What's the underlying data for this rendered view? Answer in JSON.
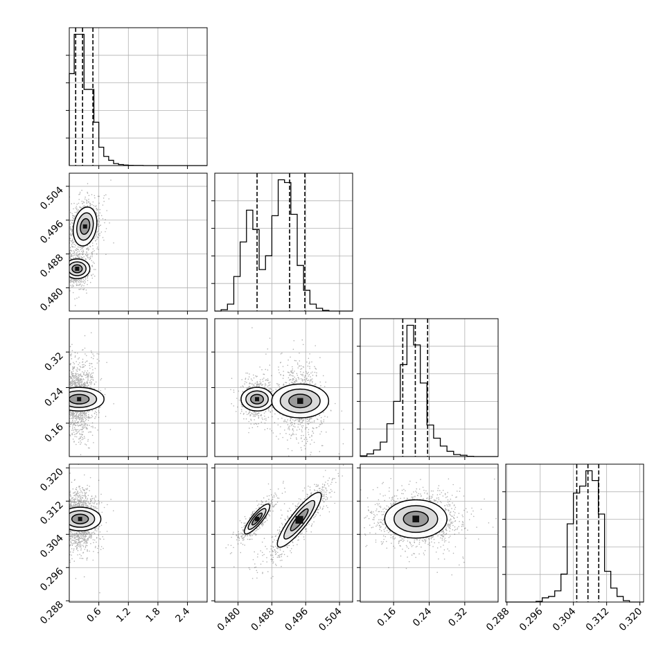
{
  "chart_data": {
    "type": "corner",
    "title": "",
    "grid": true,
    "parameters": [
      {
        "name": "",
        "range": [
          0.0,
          2.8
        ],
        "ticks": [
          0.6,
          1.2,
          1.8,
          2.4
        ],
        "tick_labels": [
          "0.6",
          "1.2",
          "1.8",
          "2.4"
        ],
        "quantiles": [
          0.13,
          0.27,
          0.48
        ],
        "histogram": {
          "bin_edges": [
            0.0,
            0.1,
            0.2,
            0.3,
            0.4,
            0.5,
            0.6,
            0.7,
            0.8,
            0.9,
            1.0,
            1.1,
            1.2,
            1.3,
            1.4,
            1.5,
            1.6,
            1.7,
            1.8,
            1.9,
            2.0,
            2.1,
            2.2,
            2.3,
            2.4,
            2.5,
            2.6,
            2.7,
            2.8
          ],
          "counts": [
            700,
            1000,
            1000,
            580,
            580,
            330,
            140,
            70,
            40,
            15,
            8,
            4,
            2,
            1,
            1,
            0,
            0,
            0,
            0,
            0,
            0,
            0,
            0,
            0,
            0,
            0,
            0,
            0
          ]
        }
      },
      {
        "name": "",
        "range": [
          0.4745,
          0.5071
        ],
        "ticks": [
          0.48,
          0.488,
          0.496,
          0.504
        ],
        "tick_labels": [
          "0.480",
          "0.488",
          "0.496",
          "0.504"
        ],
        "quantiles": [
          0.4845,
          0.4922,
          0.4958
        ],
        "histogram": {
          "bin_edges": [
            0.4745,
            0.476,
            0.4775,
            0.479,
            0.4805,
            0.482,
            0.4835,
            0.485,
            0.4865,
            0.488,
            0.4895,
            0.491,
            0.4925,
            0.494,
            0.4955,
            0.497,
            0.4985,
            0.5,
            0.5015,
            0.503,
            0.5045,
            0.506,
            0.5071
          ],
          "counts": [
            0,
            10,
            50,
            250,
            500,
            730,
            590,
            300,
            400,
            690,
            950,
            930,
            700,
            330,
            150,
            50,
            20,
            5,
            0,
            0,
            0,
            0
          ]
        }
      },
      {
        "name": "",
        "range": [
          0.085,
          0.395
        ],
        "ticks": [
          0.16,
          0.24,
          0.32
        ],
        "tick_labels": [
          "0.16",
          "0.24",
          "0.32"
        ],
        "quantiles": [
          0.1806,
          0.2088,
          0.2365
        ],
        "histogram": {
          "bin_edges": [
            0.085,
            0.1,
            0.115,
            0.13,
            0.145,
            0.16,
            0.175,
            0.19,
            0.205,
            0.22,
            0.235,
            0.25,
            0.265,
            0.28,
            0.295,
            0.31,
            0.325,
            0.34,
            0.355,
            0.37,
            0.385,
            0.395
          ],
          "counts": [
            5,
            20,
            50,
            110,
            250,
            420,
            700,
            1000,
            850,
            560,
            240,
            140,
            80,
            40,
            15,
            10,
            2,
            0,
            0,
            0,
            0
          ]
        }
      },
      {
        "name": "",
        "range": [
          0.2877,
          0.3209
        ],
        "ticks": [
          0.288,
          0.296,
          0.304,
          0.312,
          0.32
        ],
        "tick_labels": [
          "0.288",
          "0.296",
          "0.304",
          "0.312",
          "0.320"
        ],
        "quantiles": [
          0.3048,
          0.3075,
          0.3101
        ],
        "histogram": {
          "bin_edges": [
            0.2877,
            0.289,
            0.2905,
            0.292,
            0.2935,
            0.295,
            0.2965,
            0.298,
            0.2995,
            0.301,
            0.3025,
            0.304,
            0.3055,
            0.307,
            0.3085,
            0.31,
            0.3115,
            0.313,
            0.3145,
            0.316,
            0.3175,
            0.319,
            0.3209
          ],
          "counts": [
            0,
            0,
            0,
            0,
            0,
            5,
            30,
            40,
            80,
            200,
            560,
            780,
            830,
            940,
            870,
            630,
            220,
            100,
            40,
            10,
            0,
            0
          ]
        }
      }
    ],
    "pairs": [
      {
        "x_param": 0,
        "y_param": 1,
        "modes": [
          {
            "x": 0.32,
            "y": 0.4945,
            "sx": 0.12,
            "sy": 0.0023,
            "rho": 0.2,
            "weight": 0.55,
            "contours": 3
          },
          {
            "x": 0.16,
            "y": 0.4845,
            "sx": 0.1,
            "sy": 0.0015,
            "rho": 0.0,
            "weight": 0.45,
            "contours": 3
          }
        ]
      },
      {
        "x_param": 0,
        "y_param": 2,
        "modes": [
          {
            "x": 0.2,
            "y": 0.214,
            "sx": 0.12,
            "sy": 0.028,
            "rho": 0.0,
            "weight": 1.0,
            "contours": 3
          }
        ]
      },
      {
        "x_param": 0,
        "y_param": 3,
        "modes": [
          {
            "x": 0.22,
            "y": 0.3077,
            "sx": 0.12,
            "sy": 0.0025,
            "rho": 0.0,
            "weight": 1.0,
            "contours": 3
          }
        ]
      },
      {
        "x_param": 1,
        "y_param": 2,
        "modes": [
          {
            "x": 0.4845,
            "y": 0.214,
            "sx": 0.0014,
            "sy": 0.018,
            "rho": 0.0,
            "weight": 0.4,
            "contours": 3
          },
          {
            "x": 0.4947,
            "y": 0.21,
            "sx": 0.002,
            "sy": 0.032,
            "rho": 0.0,
            "weight": 0.6,
            "contours": 3
          }
        ]
      },
      {
        "x_param": 1,
        "y_param": 3,
        "modes": [
          {
            "x": 0.4845,
            "y": 0.3077,
            "sx": 0.0015,
            "sy": 0.0018,
            "rho": 0.85,
            "weight": 0.4,
            "contours": 3
          },
          {
            "x": 0.4945,
            "y": 0.3075,
            "sx": 0.0026,
            "sy": 0.0033,
            "rho": 0.88,
            "weight": 0.6,
            "contours": 3
          }
        ]
      },
      {
        "x_param": 2,
        "y_param": 3,
        "modes": [
          {
            "x": 0.21,
            "y": 0.3077,
            "sx": 0.035,
            "sy": 0.0023,
            "rho": 0.0,
            "weight": 1.0,
            "contours": 3
          }
        ]
      }
    ],
    "histogram_y_ticks_labeled": false
  }
}
